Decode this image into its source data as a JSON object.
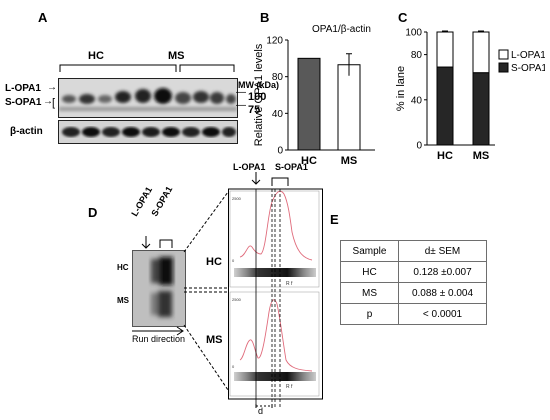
{
  "panels": {
    "a": "A",
    "b": "B",
    "c": "C",
    "d": "D",
    "e": "E"
  },
  "panel_a": {
    "group_hc": "HC",
    "group_ms": "MS",
    "mw_label": "MW (kDa)",
    "mw_100": "100",
    "mw_75": "75",
    "l_opa1": "L-OPA1",
    "s_opa1": "S-OPA1",
    "beta_actin": "β-actin"
  },
  "panel_b": {
    "chart_data": {
      "type": "bar",
      "title": "OPA1/β-actin",
      "ylabel": "Relative OPA1 levels",
      "xlabel": "",
      "categories": [
        "HC",
        "MS"
      ],
      "values": [
        100,
        93
      ],
      "errors": [
        0,
        12
      ],
      "ylim": [
        0,
        120
      ],
      "yticks": [
        0,
        40,
        80,
        120
      ],
      "colors": [
        "#595959",
        "#ffffff"
      ],
      "grid": false
    }
  },
  "panel_c": {
    "chart_data": {
      "type": "bar",
      "stacked": true,
      "ylabel": "% in lane",
      "categories": [
        "HC",
        "MS"
      ],
      "ylim": [
        0,
        100
      ],
      "yticks": [
        0,
        40,
        80,
        100
      ],
      "series": [
        {
          "name": "S-OPA1",
          "values": [
            69,
            64
          ],
          "color": "#262626"
        },
        {
          "name": "L-OPA1",
          "values": [
            31,
            36
          ],
          "color": "#ffffff"
        }
      ],
      "legend": "right",
      "grid": false
    }
  },
  "panel_d": {
    "l_opa1": "L-OPA1",
    "s_opa1": "S-OPA1",
    "lane_hc": "HC",
    "lane_ms": "MS",
    "run_direction": "Run direction",
    "profile_hc": "HC",
    "profile_ms": "MS",
    "d_label": "d",
    "rf_label": "R f"
  },
  "panel_e": {
    "header": [
      "Sample",
      "d± SEM"
    ],
    "rows": [
      [
        "HC",
        "0.128 ±0.007"
      ],
      [
        "MS",
        "0.088 ± 0.004"
      ],
      [
        "p",
        "< 0.0001"
      ]
    ]
  }
}
